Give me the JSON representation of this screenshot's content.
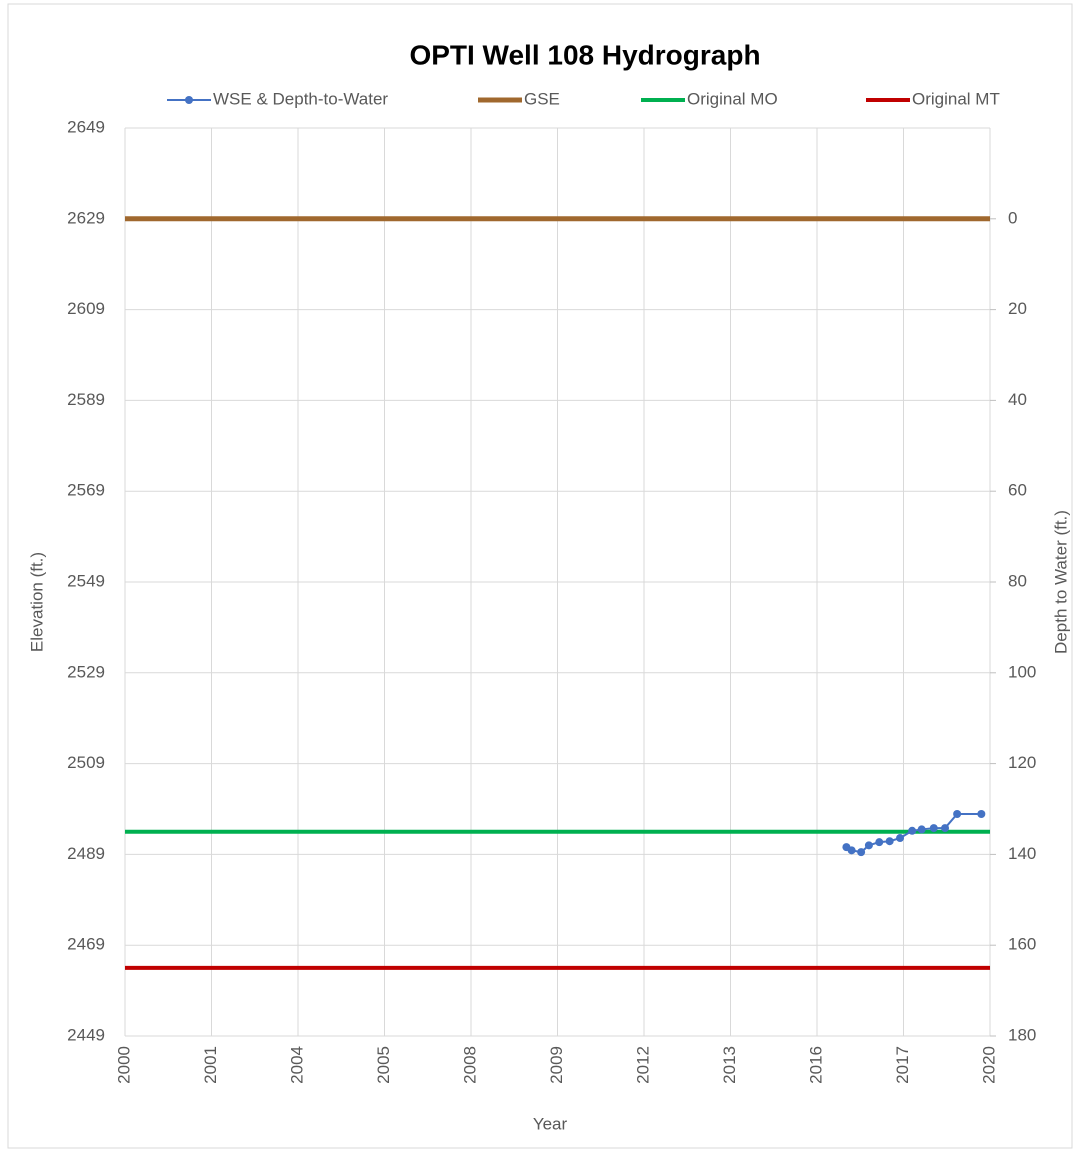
{
  "chart_data": {
    "type": "line",
    "title": "OPTI Well 108 Hydrograph",
    "x_label": "Year",
    "y_label": "Elevation (ft.)",
    "y2_label": "Depth to Water (ft.)",
    "xlim": [
      0,
      10
    ],
    "xticks": [
      {
        "value": 0,
        "label": "2000"
      },
      {
        "value": 1,
        "label": "2001"
      },
      {
        "value": 2,
        "label": "2004"
      },
      {
        "value": 3,
        "label": "2005"
      },
      {
        "value": 4,
        "label": "2008"
      },
      {
        "value": 5,
        "label": "2009"
      },
      {
        "value": 6,
        "label": "2012"
      },
      {
        "value": 7,
        "label": "2013"
      },
      {
        "value": 8,
        "label": "2016"
      },
      {
        "value": 9,
        "label": "2017"
      },
      {
        "value": 10,
        "label": "2020"
      }
    ],
    "ylim": [
      2449,
      2649
    ],
    "yticks": [
      2449,
      2469,
      2489,
      2509,
      2529,
      2549,
      2569,
      2589,
      2609,
      2629,
      2649
    ],
    "y2lim": [
      -20,
      180
    ],
    "y2_inverted": true,
    "y2ticks": [
      0,
      20,
      40,
      60,
      80,
      100,
      120,
      140,
      160,
      180
    ],
    "grid": true,
    "legend": "top",
    "series": [
      {
        "name": "WSE & Depth-to-Water",
        "color": "#4472c4",
        "x": [
          8.34,
          8.4,
          8.51,
          8.6,
          8.72,
          8.84,
          8.96,
          9.1,
          9.21,
          9.35,
          9.48,
          9.62,
          9.9
        ],
        "values": [
          2490.6,
          2489.9,
          2489.5,
          2491.0,
          2491.7,
          2491.9,
          2492.6,
          2494.2,
          2494.5,
          2494.8,
          2494.8,
          2497.9,
          2497.9
        ]
      }
    ],
    "reference_lines": [
      {
        "name": "GSE",
        "color": "#a0682e",
        "value": 2629
      },
      {
        "name": "Original MO",
        "color": "#00b050",
        "value": 2494
      },
      {
        "name": "Original MT",
        "color": "#c00000",
        "value": 2464
      }
    ]
  }
}
